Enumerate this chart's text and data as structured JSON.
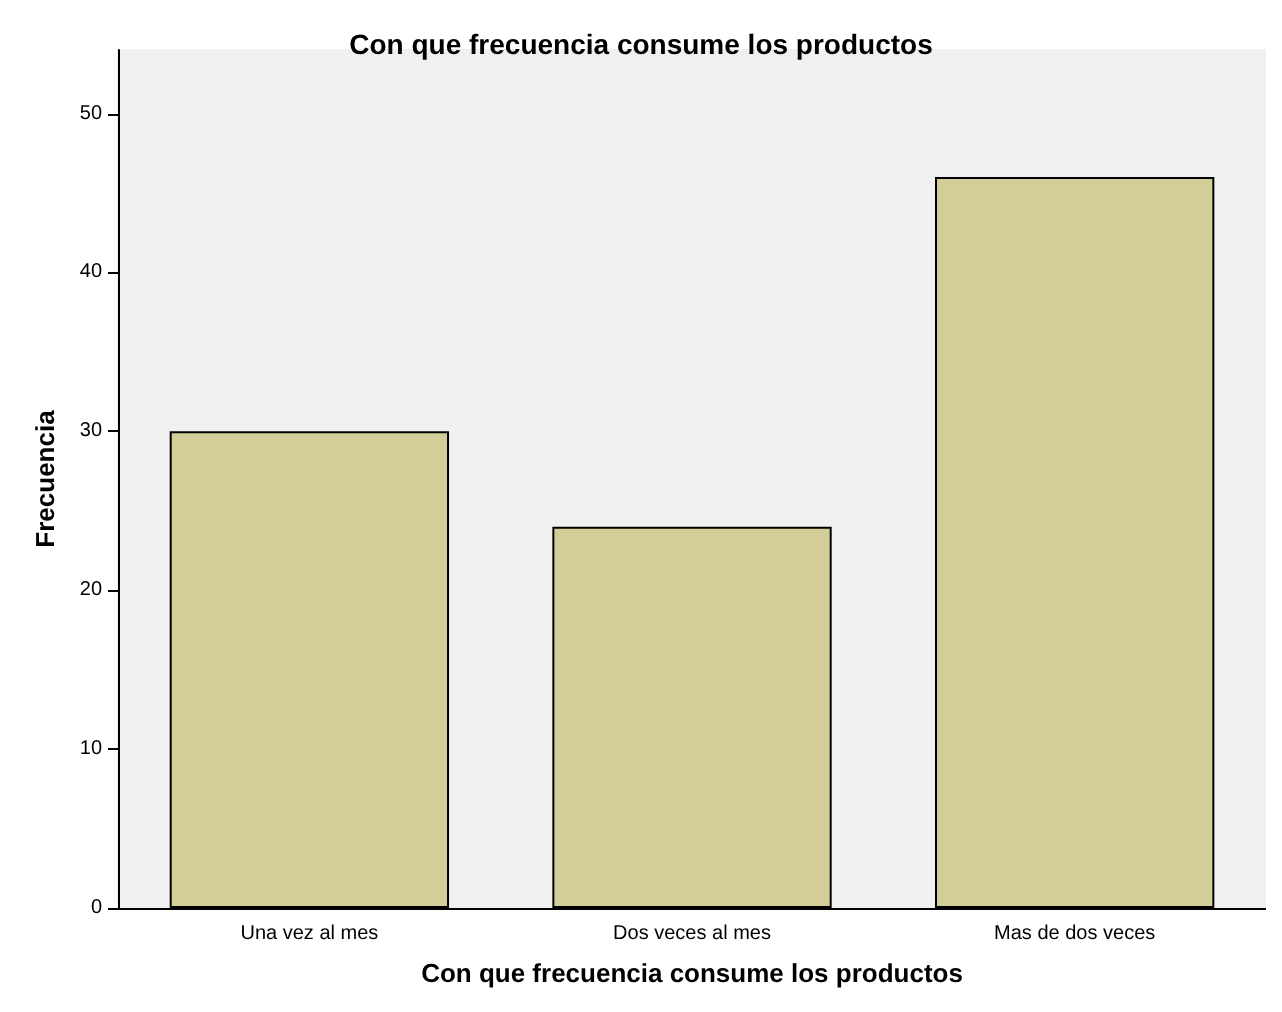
{
  "chart_data": {
    "type": "bar",
    "title": "Con que frecuencia consume los productos",
    "xlabel": "Con que frecuencia consume los productos",
    "ylabel": "Frecuencia",
    "categories": [
      "Una vez al mes",
      "Dos veces al mes",
      "Mas de dos veces"
    ],
    "values": [
      30,
      24,
      46
    ],
    "color": "#d3ce98",
    "ylim": [
      0,
      54
    ],
    "yticks": [
      0,
      10,
      20,
      30,
      40,
      50
    ],
    "grid": false
  }
}
